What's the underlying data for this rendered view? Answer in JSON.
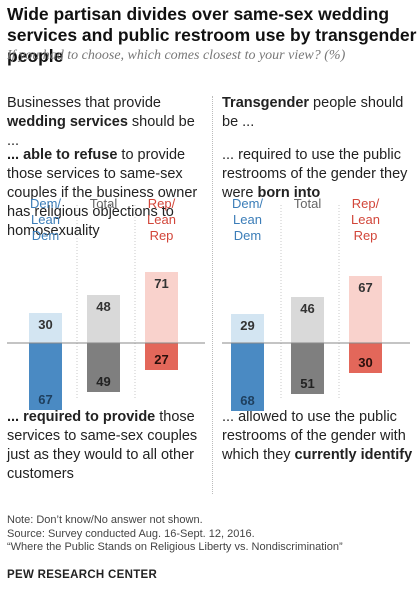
{
  "title": "Wide partisan divides over same-sex wedding services and public restroom use by transgender people",
  "subtitle": "If you had to choose, which comes closest to your view? (%)",
  "left_panel": {
    "head_pre": "Businesses that provide ",
    "head_bold": "wedding services",
    "head_post": " should be ...",
    "top_bold": "... able to refuse",
    "top_rest": " to provide those services to same-sex couples if the business owner has religious objections to homosexuality",
    "bottom_bold": "... required to provide",
    "bottom_rest": " those services to same-sex couples just as they would to all other customers"
  },
  "right_panel": {
    "head_bold": "Transgender",
    "head_post": " people should be ...",
    "top_pre": "... required to use the public restrooms of the gender they were ",
    "top_bold": "born into",
    "bottom_pre": "... allowed to use the public restrooms of the gender with which they ",
    "bottom_bold": "currently identify"
  },
  "colors": {
    "dem_light": "#d3e5f2",
    "dem_dark": "#4a8ac3",
    "total_light": "#d9d9d9",
    "total_dark": "#7f7f7f",
    "rep_light": "#f9d2cc",
    "rep_dark": "#e3675a",
    "dem_text": "#3b7db8",
    "rep_text": "#d2463a"
  },
  "chart_data": [
    {
      "type": "bar",
      "categories": [
        "Dem/\nLean\nDem",
        "Total",
        "Rep/\nLean\nRep"
      ],
      "series": [
        {
          "values": [
            30,
            48,
            71
          ]
        },
        {
          "values": [
            67,
            49,
            27
          ]
        }
      ]
    },
    {
      "type": "bar",
      "categories": [
        "Dem/\nLean\nDem",
        "Total",
        "Rep/\nLean\nRep"
      ],
      "series": [
        {
          "values": [
            29,
            46,
            67
          ]
        },
        {
          "values": [
            68,
            51,
            30
          ]
        }
      ]
    }
  ],
  "footer": {
    "note": "Note: Don’t know/No answer not shown.",
    "source": "Source: Survey conducted Aug. 16-Sept. 12, 2016.",
    "report": "“Where the Public Stands on Religious Liberty vs. Nondiscrimination”",
    "brand": "PEW RESEARCH CENTER"
  }
}
